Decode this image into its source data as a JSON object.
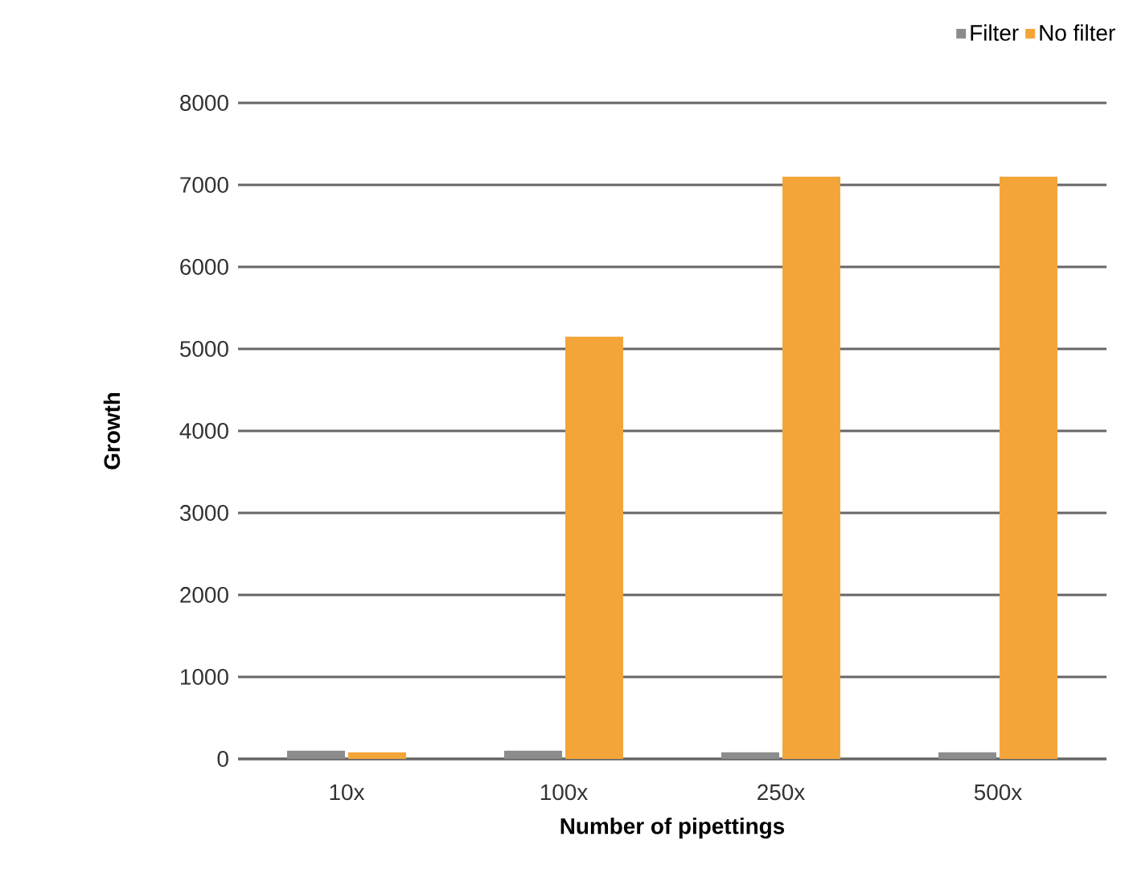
{
  "chart_data": {
    "type": "bar",
    "xlabel": "Number of pipettings",
    "ylabel": "Growth",
    "categories": [
      "10x",
      "100x",
      "250x",
      "500x"
    ],
    "series": [
      {
        "name": "Filter",
        "color": "#8c8c8c",
        "values": [
          100,
          100,
          80,
          80
        ]
      },
      {
        "name": "No filter",
        "color": "#f4a53a",
        "values": [
          80,
          5150,
          7100,
          7100
        ]
      }
    ],
    "ylim": [
      0,
      8000
    ],
    "yticks": [
      0,
      1000,
      2000,
      3000,
      4000,
      5000,
      6000,
      7000,
      8000
    ],
    "grid": "y",
    "legend": "top right"
  }
}
